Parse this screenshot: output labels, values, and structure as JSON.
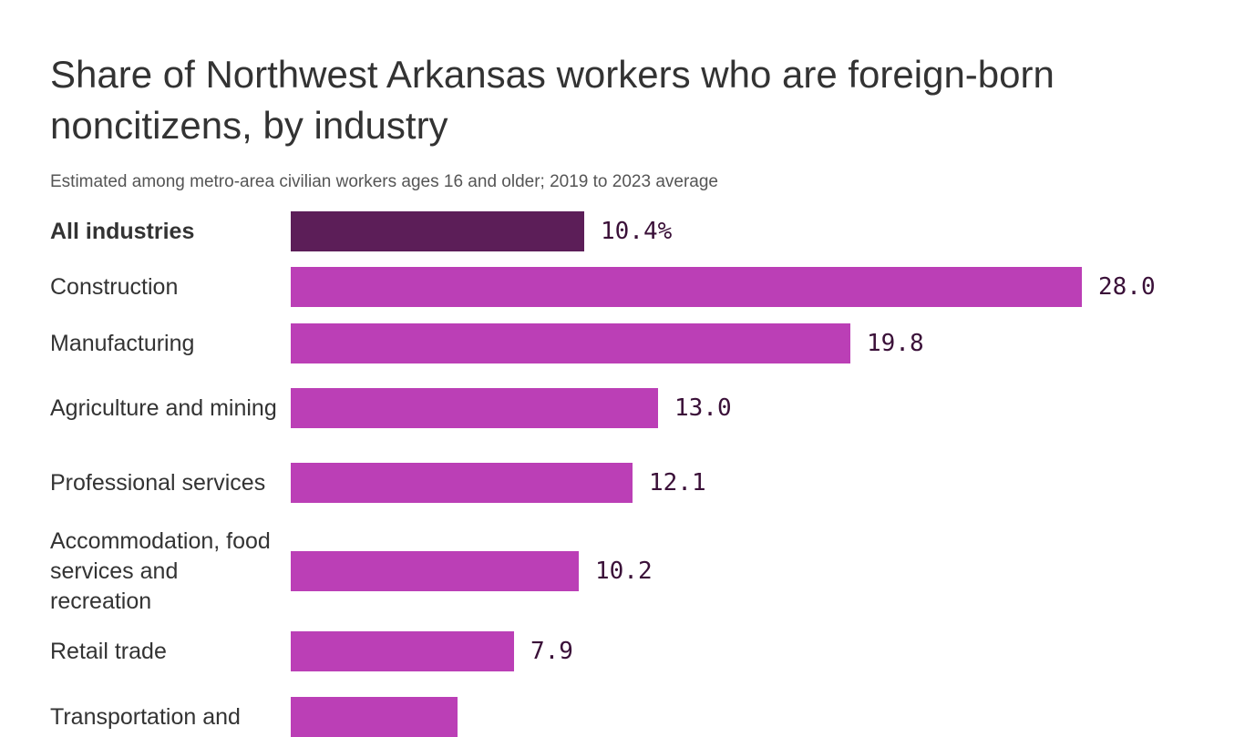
{
  "chart_data": {
    "type": "bar",
    "orientation": "horizontal",
    "title": "Share of Northwest Arkansas workers who are foreign-born noncitizens, by industry",
    "subtitle": "Estimated among metro-area civilian workers ages 16 and older; 2019 to 2023 average",
    "categories": [
      "All industries",
      "Construction",
      "Manufacturing",
      "Agriculture and mining",
      "Professional services",
      "Accommodation, food services and recreation",
      "Retail trade",
      "Transportation and"
    ],
    "values": [
      10.4,
      28.0,
      19.8,
      13.0,
      12.1,
      10.2,
      7.9,
      5.9
    ],
    "value_labels": [
      "10.4%",
      "28.0",
      "19.8",
      "13.0",
      "12.1",
      "10.2",
      "7.9",
      ""
    ],
    "highlight_index": 0,
    "xlim": [
      0,
      28.0
    ],
    "grid": false,
    "legend": "none",
    "colors": {
      "highlight": "#5c1e58",
      "bar": "#bb3fb6",
      "value_text": "#3a1038"
    }
  }
}
